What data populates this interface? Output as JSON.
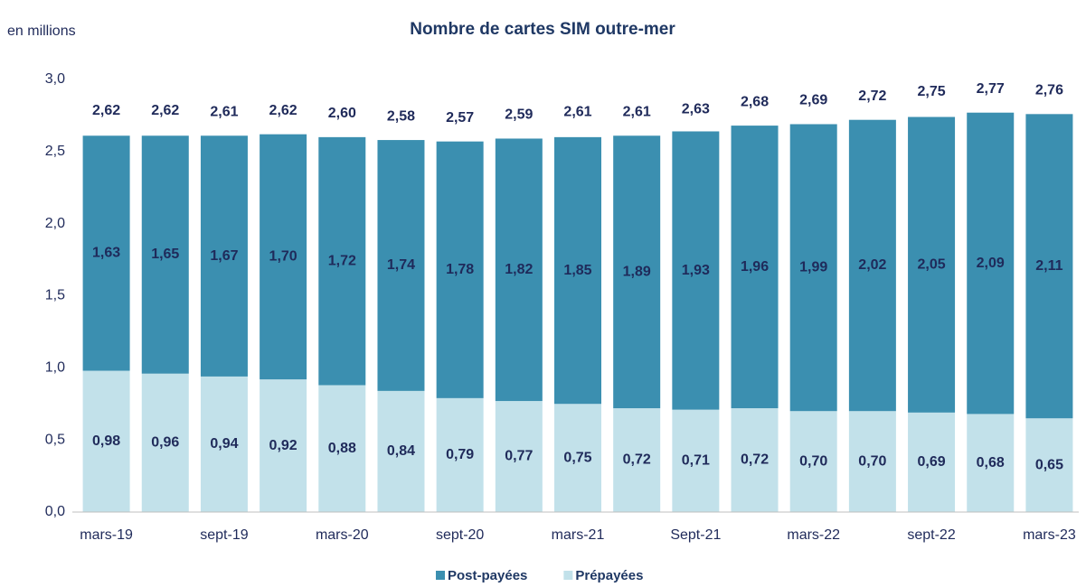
{
  "chart_data": {
    "type": "stacked_bar",
    "title": "Nombre de cartes SIM outre-mer",
    "y_label": "en millions",
    "categories": [
      "mars-19",
      null,
      "sept-19",
      null,
      "mars-20",
      null,
      "sept-20",
      null,
      "mars-21",
      null,
      "Sept-21",
      null,
      "mars-22",
      null,
      "sept-22",
      null,
      "mars-23"
    ],
    "series": [
      {
        "name": "Post-payées",
        "color": "#3b8fb0",
        "values": [
          1.63,
          1.65,
          1.67,
          1.7,
          1.72,
          1.74,
          1.78,
          1.82,
          1.85,
          1.89,
          1.93,
          1.96,
          1.99,
          2.02,
          2.05,
          2.09,
          2.11
        ],
        "value_labels": [
          "1,63",
          "1,65",
          "1,67",
          "1,70",
          "1,72",
          "1,74",
          "1,78",
          "1,82",
          "1,85",
          "1,89",
          "1,93",
          "1,96",
          "1,99",
          "2,02",
          "2,05",
          "2,09",
          "2,11"
        ]
      },
      {
        "name": "Prépayées",
        "color": "#c2e1ea",
        "values": [
          0.98,
          0.96,
          0.94,
          0.92,
          0.88,
          0.84,
          0.79,
          0.77,
          0.75,
          0.72,
          0.71,
          0.72,
          0.7,
          0.7,
          0.69,
          0.68,
          0.65
        ],
        "value_labels": [
          "0,98",
          "0,96",
          "0,94",
          "0,92",
          "0,88",
          "0,84",
          "0,79",
          "0,77",
          "0,75",
          "0,72",
          "0,71",
          "0,72",
          "0,70",
          "0,70",
          "0,69",
          "0,68",
          "0,65"
        ]
      }
    ],
    "totals": {
      "values": [
        2.62,
        2.62,
        2.61,
        2.62,
        2.6,
        2.58,
        2.57,
        2.59,
        2.61,
        2.61,
        2.63,
        2.68,
        2.69,
        2.72,
        2.75,
        2.77,
        2.76
      ],
      "value_labels": [
        "2,62",
        "2,62",
        "2,61",
        "2,62",
        "2,60",
        "2,58",
        "2,57",
        "2,59",
        "2,61",
        "2,61",
        "2,63",
        "2,68",
        "2,69",
        "2,72",
        "2,75",
        "2,77",
        "2,76"
      ]
    },
    "ylim": [
      0,
      3
    ],
    "yticks": [
      {
        "value": 0,
        "label": "0,0"
      },
      {
        "value": 0.5,
        "label": "0,5"
      },
      {
        "value": 1,
        "label": "1,0"
      },
      {
        "value": 1.5,
        "label": "1,5"
      },
      {
        "value": 2,
        "label": "2,0"
      },
      {
        "value": 2.5,
        "label": "2,5"
      },
      {
        "value": 3,
        "label": "3,0"
      }
    ],
    "legend": "bottom"
  }
}
